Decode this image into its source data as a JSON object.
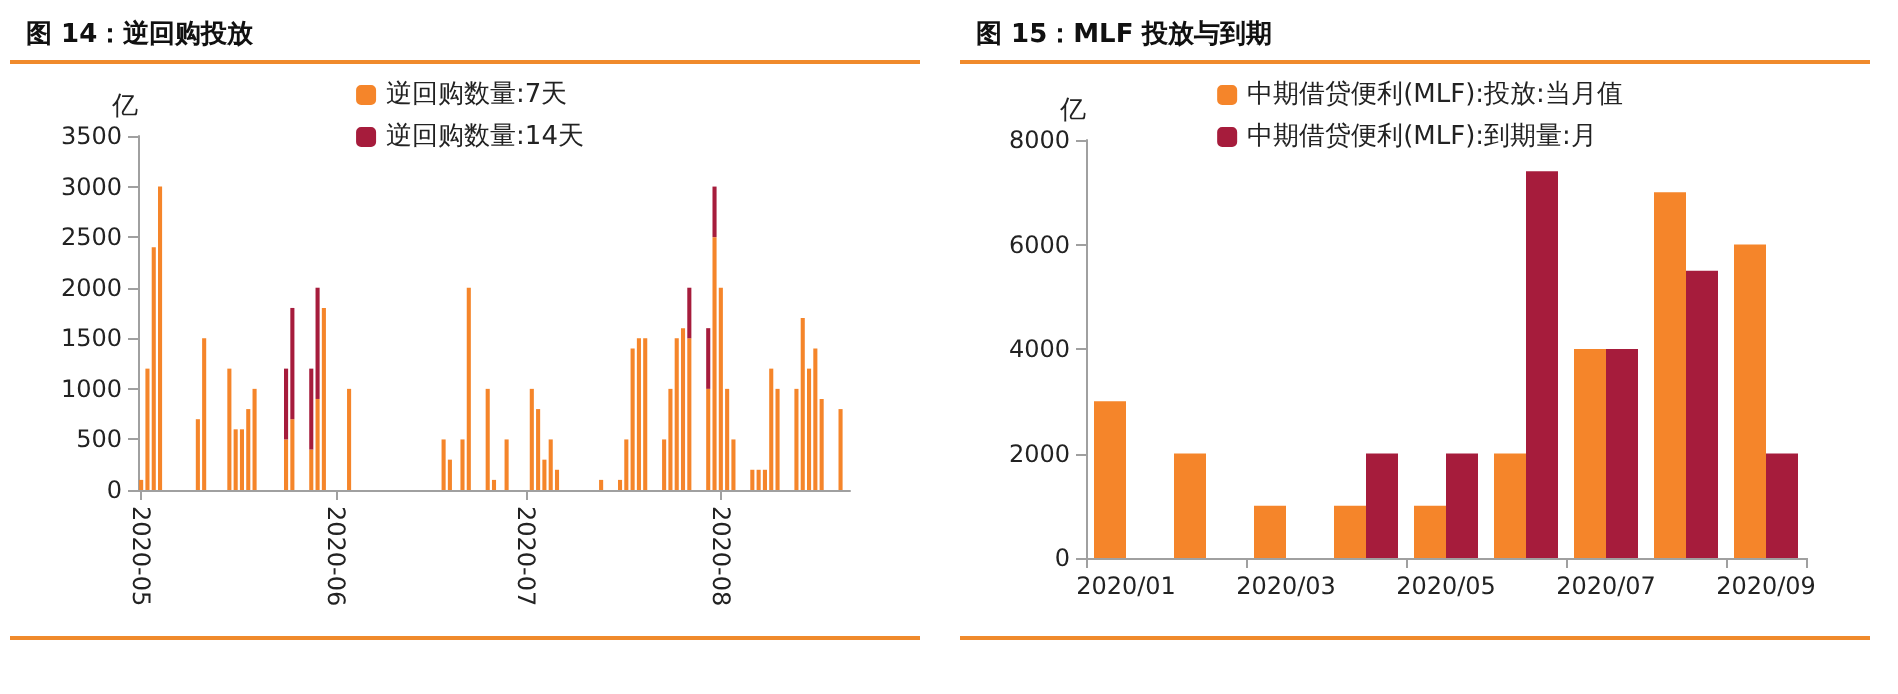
{
  "chart_data": [
    {
      "type": "bar",
      "title": "图 14：逆回购投放",
      "ylabel": "亿",
      "stacked": true,
      "legend": "top",
      "grid": false,
      "categories": [
        "2020-05",
        null,
        null,
        null,
        null,
        null,
        null,
        null,
        null,
        null,
        null,
        null,
        null,
        null,
        null,
        null,
        null,
        null,
        null,
        null,
        null,
        null,
        null,
        null,
        null,
        null,
        null,
        null,
        null,
        null,
        null,
        "2020-06",
        null,
        null,
        null,
        null,
        null,
        null,
        null,
        null,
        null,
        null,
        null,
        null,
        null,
        null,
        null,
        null,
        null,
        null,
        null,
        null,
        null,
        null,
        null,
        null,
        null,
        null,
        null,
        null,
        null,
        "2020-07",
        null,
        null,
        null,
        null,
        null,
        null,
        null,
        null,
        null,
        null,
        null,
        null,
        null,
        null,
        null,
        null,
        null,
        null,
        null,
        null,
        null,
        null,
        null,
        null,
        null,
        null,
        null,
        null,
        null,
        null,
        "2020-08",
        null,
        null,
        null,
        null,
        null,
        null,
        null,
        null,
        null,
        null,
        null,
        null,
        null,
        null,
        null,
        null,
        null,
        null,
        null,
        null
      ],
      "series": [
        {
          "name": "逆回购数量:7天",
          "color": "#f5852a",
          "values": [
            100,
            1200,
            2400,
            3000,
            null,
            null,
            null,
            null,
            null,
            700,
            1500,
            null,
            null,
            null,
            1200,
            600,
            600,
            800,
            1000,
            null,
            null,
            null,
            null,
            500,
            700,
            null,
            null,
            400,
            900,
            1800,
            null,
            null,
            null,
            1000,
            null,
            null,
            null,
            null,
            null,
            null,
            null,
            null,
            null,
            null,
            null,
            null,
            null,
            null,
            500,
            300,
            null,
            500,
            2000,
            null,
            null,
            1000,
            100,
            null,
            500,
            null,
            null,
            null,
            1000,
            800,
            300,
            500,
            200,
            null,
            null,
            null,
            null,
            null,
            null,
            100,
            null,
            null,
            100,
            500,
            1400,
            1500,
            1500,
            null,
            null,
            500,
            1000,
            1500,
            1600,
            1500,
            null,
            null,
            1000,
            2500,
            2000,
            1000,
            500,
            null,
            null,
            200,
            200,
            200,
            1200,
            1000,
            null,
            null,
            1000,
            1700,
            1200,
            1400,
            900,
            null,
            null,
            800,
            null
          ]
        },
        {
          "name": "逆回购数量:14天",
          "color": "#a61c3c",
          "values": [
            null,
            null,
            null,
            null,
            null,
            null,
            null,
            null,
            null,
            null,
            null,
            null,
            null,
            null,
            null,
            null,
            null,
            null,
            null,
            null,
            null,
            null,
            null,
            700,
            1100,
            null,
            null,
            800,
            1100,
            null,
            null,
            null,
            null,
            null,
            null,
            null,
            null,
            null,
            null,
            null,
            null,
            null,
            null,
            null,
            null,
            null,
            null,
            null,
            null,
            null,
            null,
            null,
            null,
            null,
            null,
            null,
            null,
            null,
            null,
            null,
            null,
            null,
            null,
            null,
            null,
            null,
            null,
            null,
            null,
            null,
            null,
            null,
            null,
            null,
            null,
            null,
            null,
            null,
            null,
            null,
            null,
            null,
            null,
            null,
            null,
            null,
            null,
            500,
            null,
            null,
            600,
            500,
            null,
            null,
            null,
            null,
            null,
            null,
            null,
            null,
            null,
            null,
            null,
            null,
            null,
            null,
            null,
            null,
            null,
            null,
            null,
            null,
            null
          ]
        }
      ],
      "ylim": [
        0,
        3500
      ],
      "yticks": [
        0,
        500,
        1000,
        1500,
        2000,
        2500,
        3000,
        3500
      ]
    },
    {
      "type": "bar",
      "title": "图 15：MLF 投放与到期",
      "ylabel": "亿",
      "legend": "top",
      "grid": false,
      "categories": [
        "2020/01",
        null,
        "2020/03",
        null,
        "2020/05",
        null,
        "2020/07",
        null,
        "2020/09"
      ],
      "series": [
        {
          "name": "中期借贷便利(MLF):投放:当月值",
          "color": "#f5852a",
          "values": [
            3000,
            2000,
            1000,
            1000,
            1000,
            2000,
            4000,
            7000,
            6000
          ]
        },
        {
          "name": "中期借贷便利(MLF):到期量:月",
          "color": "#a61c3c",
          "values": [
            null,
            null,
            null,
            2000,
            2000,
            7400,
            4000,
            5500,
            2000
          ]
        }
      ],
      "ylim": [
        0,
        8000
      ],
      "yticks": [
        0,
        2000,
        4000,
        6000,
        8000
      ]
    }
  ]
}
